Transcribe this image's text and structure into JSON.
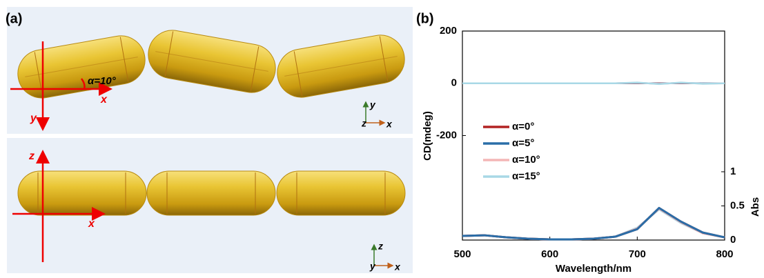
{
  "panel_a": {
    "label": "(a)",
    "angle_label": "α=10°",
    "top_axes": {
      "x": "x",
      "y": "y"
    },
    "top_triad": {
      "y": "y",
      "z": "z",
      "x": "x"
    },
    "bottom_axes": {
      "z": "z",
      "x": "x"
    },
    "bottom_triad": {
      "z": "z",
      "y": "y",
      "x": "x"
    }
  },
  "chart_data": {
    "type": "line",
    "panel_label": "(b)",
    "x_label": "Wavelength/nm",
    "y_label": "CD(mdeg)",
    "y2_label": "Abs",
    "x": [
      500,
      525,
      550,
      575,
      600,
      625,
      650,
      675,
      700,
      725,
      750,
      775,
      800
    ],
    "xlim": [
      500,
      800
    ],
    "xticks": [
      500,
      600,
      700,
      800
    ],
    "ylim": [
      -600,
      200
    ],
    "yticks": [
      200,
      0,
      -200
    ],
    "y2lim": [
      0,
      3.06
    ],
    "y2ticks": [
      0,
      0.5,
      1
    ],
    "series": [
      {
        "name": "α=0°",
        "color": "#b22222",
        "values": [
          0,
          0,
          0,
          0,
          0,
          0,
          0,
          0,
          0,
          0,
          0,
          0,
          0
        ],
        "abs_values": [
          0.06,
          0.07,
          0.04,
          0.02,
          0.01,
          0.01,
          0.02,
          0.05,
          0.16,
          0.47,
          0.27,
          0.11,
          0.04
        ]
      },
      {
        "name": "α=5°",
        "color": "#2a6ea8",
        "values": [
          0,
          0,
          0,
          0,
          0,
          0,
          0,
          0,
          1,
          -1,
          1,
          0,
          0
        ],
        "abs_values": [
          0.06,
          0.07,
          0.04,
          0.02,
          0.01,
          0.01,
          0.02,
          0.05,
          0.16,
          0.47,
          0.27,
          0.11,
          0.04
        ]
      },
      {
        "name": "α=10°",
        "color": "#f4b6b6",
        "values": [
          0,
          0,
          0,
          0,
          0,
          0,
          0,
          0,
          2,
          -2,
          2,
          -1,
          0
        ],
        "abs_values": [
          0.06,
          0.07,
          0.04,
          0.02,
          0.01,
          0.01,
          0.02,
          0.05,
          0.17,
          0.46,
          0.26,
          0.1,
          0.04
        ]
      },
      {
        "name": "α=15°",
        "color": "#a8d8e6",
        "values": [
          0,
          0,
          0,
          0,
          0,
          0,
          0,
          0,
          3,
          -3,
          3,
          -2,
          0
        ],
        "abs_values": [
          0.06,
          0.07,
          0.04,
          0.02,
          0.01,
          0.01,
          0.02,
          0.05,
          0.18,
          0.45,
          0.25,
          0.1,
          0.04
        ]
      }
    ]
  }
}
